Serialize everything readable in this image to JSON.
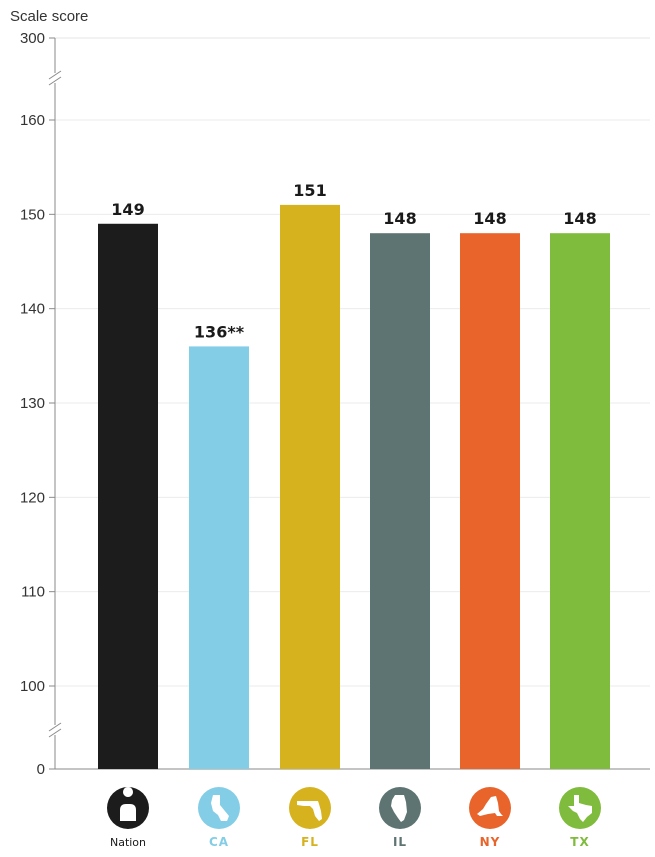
{
  "chart_data": {
    "type": "bar",
    "ylabel": "Scale score",
    "ylim": [
      100,
      160
    ],
    "y_ticks": [
      100,
      110,
      120,
      130,
      140,
      150,
      160
    ],
    "y_axis_break_ticks": [
      "0",
      "300"
    ],
    "grid": true,
    "categories": [
      "Nation",
      "CA",
      "FL",
      "IL",
      "NY",
      "TX"
    ],
    "values": [
      149,
      136,
      151,
      148,
      148,
      148
    ],
    "value_labels": [
      "149",
      "136**",
      "151",
      "148",
      "148",
      "148"
    ],
    "bar_colors": [
      "#1c1c1c",
      "#84cde6",
      "#d6b21e",
      "#5d7473",
      "#e8642a",
      "#7fbb3c"
    ],
    "label_colors": [
      "#1a1a1a",
      "#84cde6",
      "#d6b21e",
      "#5d7473",
      "#e8642a",
      "#7fbb3c"
    ],
    "icons": [
      "person-icon",
      "california-icon",
      "florida-icon",
      "illinois-icon",
      "new-york-icon",
      "texas-icon"
    ]
  }
}
